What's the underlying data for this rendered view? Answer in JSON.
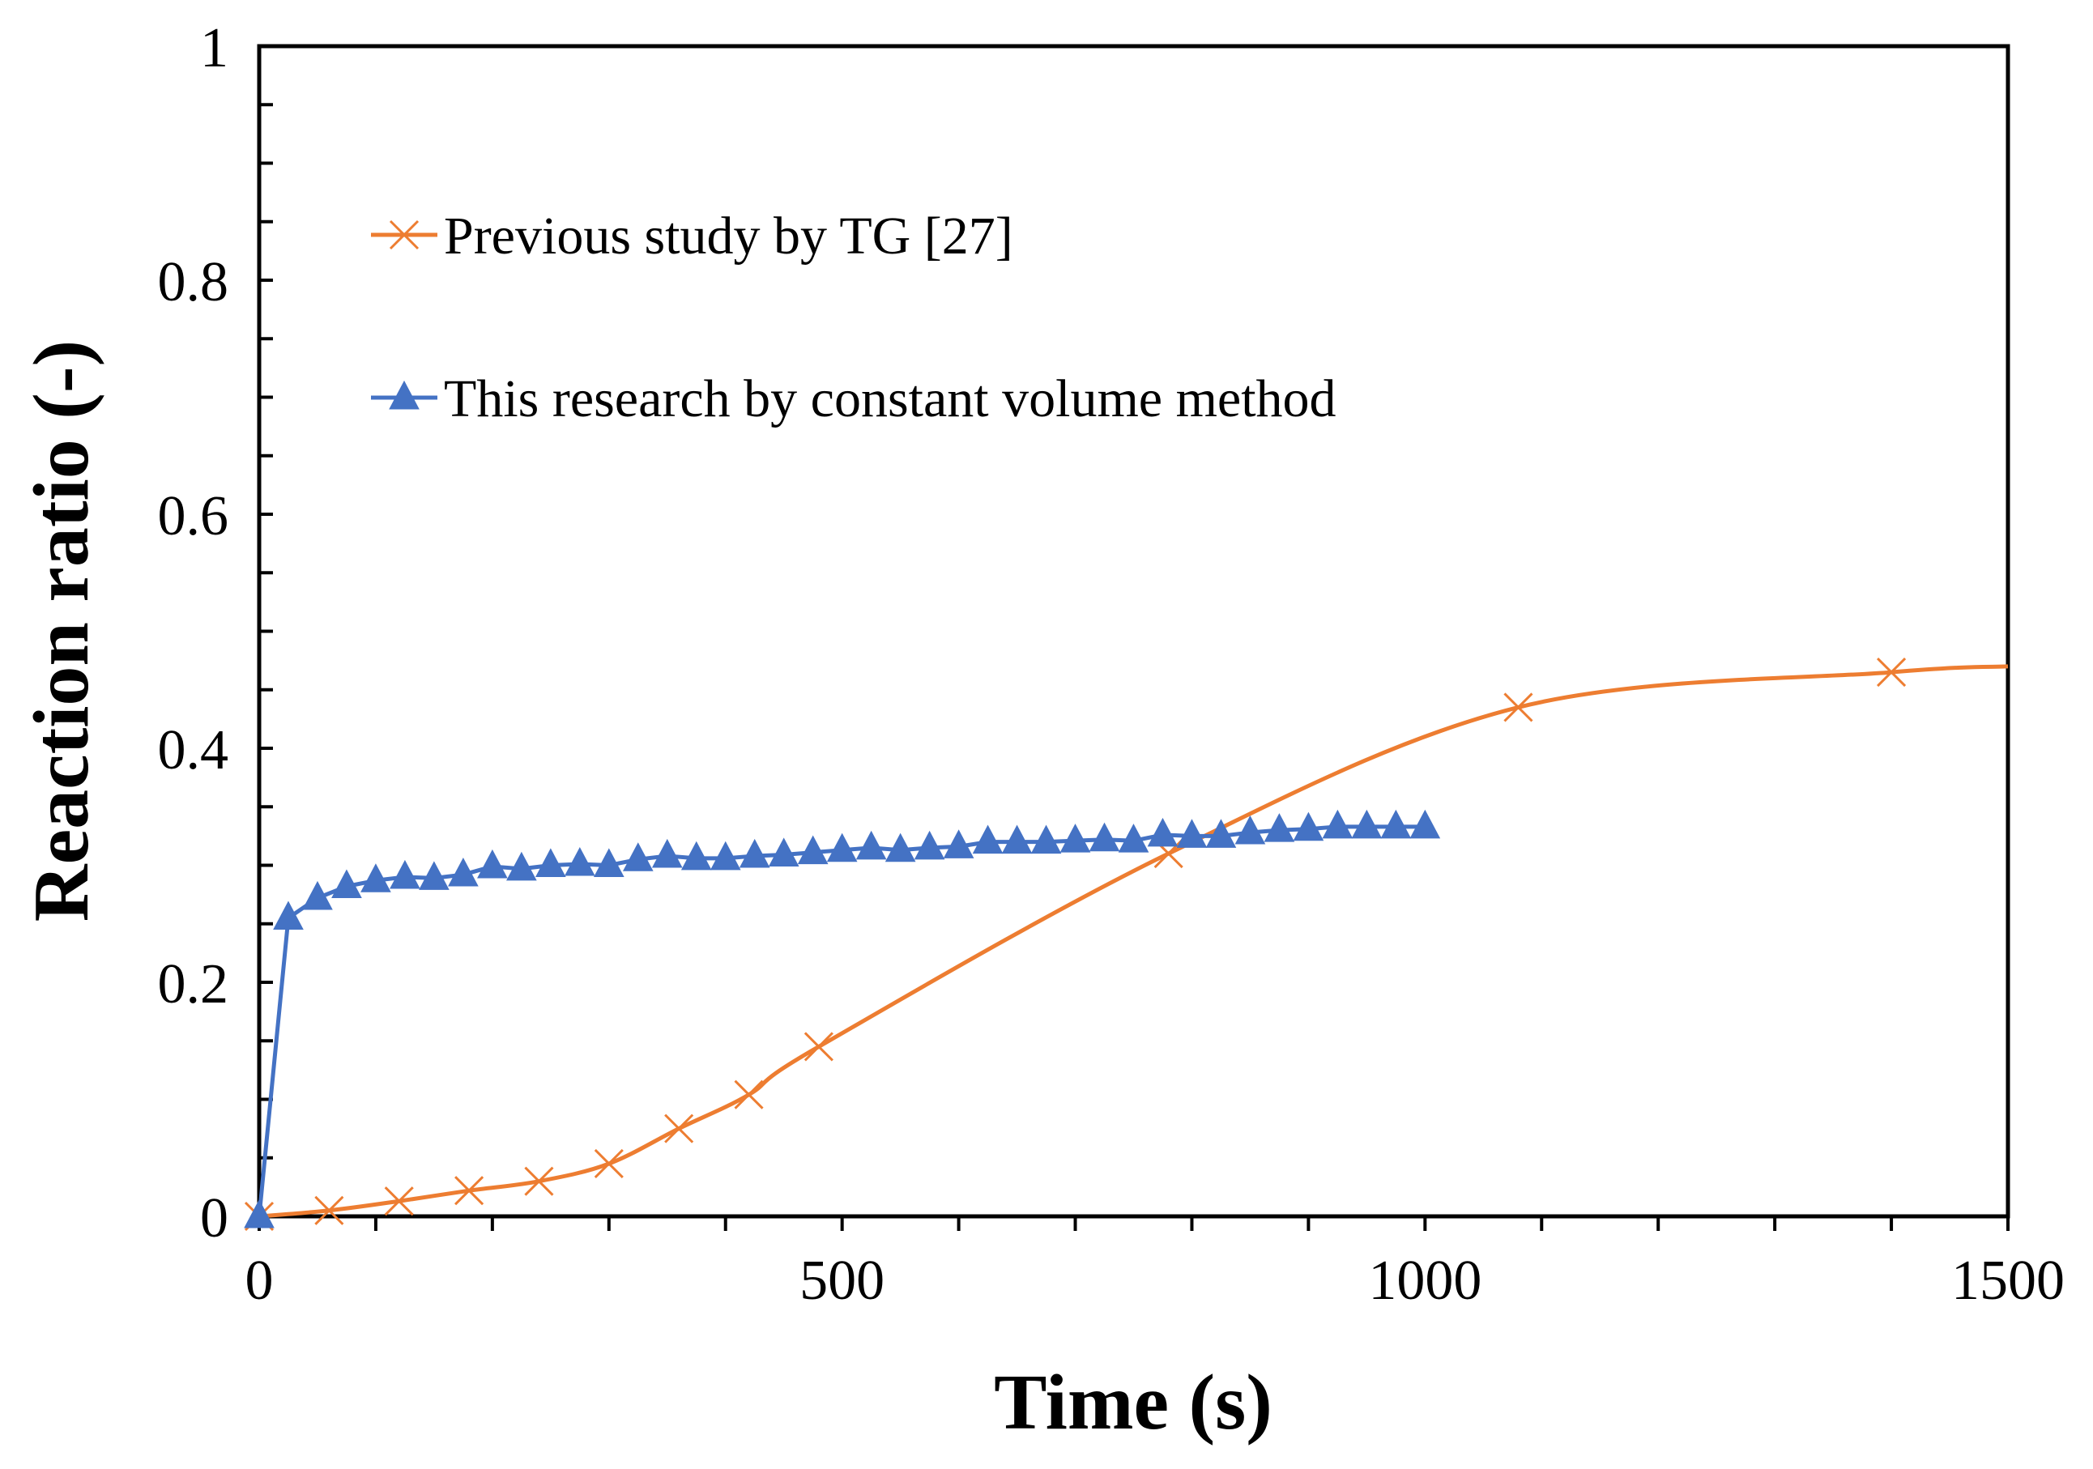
{
  "chart_data": {
    "type": "line",
    "title": "",
    "xlabel": "Time (s)",
    "ylabel": "Reaction ratio (-)",
    "xlim": [
      0,
      1500
    ],
    "ylim": [
      0,
      1
    ],
    "grid": false,
    "legend_position": "top-left",
    "x_ticks": [
      0,
      500,
      1000,
      1500
    ],
    "x_tick_labels": [
      "0",
      "500",
      "1000",
      "1500"
    ],
    "x_minor_step": 100,
    "y_ticks": [
      0,
      0.2,
      0.4,
      0.6,
      0.8,
      1
    ],
    "y_tick_labels": [
      "0",
      "0.2",
      "0.4",
      "0.6",
      "0.8",
      "1"
    ],
    "y_minor_step": 0.05,
    "series": [
      {
        "name": "Previous study by TG [27]",
        "color": "#ED7D31",
        "marker": "x",
        "smooth": true,
        "x": [
          0,
          60,
          120,
          180,
          240,
          300,
          360,
          420,
          480,
          780,
          1080,
          1400,
          1500
        ],
        "y": [
          0.0,
          0.005,
          0.013,
          0.022,
          0.03,
          0.045,
          0.075,
          0.104,
          0.145,
          0.31,
          0.435,
          0.465,
          0.47
        ],
        "marker_mask": [
          true,
          true,
          true,
          true,
          true,
          true,
          true,
          true,
          true,
          true,
          true,
          true,
          false
        ]
      },
      {
        "name": "This research by constant volume method",
        "color": "#4472C4",
        "marker": "triangle",
        "smooth": false,
        "x": [
          0,
          25,
          50,
          75,
          100,
          125,
          150,
          175,
          200,
          225,
          250,
          275,
          300,
          325,
          350,
          375,
          400,
          425,
          450,
          475,
          500,
          525,
          550,
          575,
          600,
          625,
          650,
          675,
          700,
          725,
          750,
          775,
          800,
          825,
          850,
          875,
          900,
          925,
          950,
          975,
          1000
        ],
        "y": [
          0.0,
          0.255,
          0.272,
          0.282,
          0.287,
          0.29,
          0.289,
          0.292,
          0.299,
          0.297,
          0.3,
          0.301,
          0.3,
          0.305,
          0.308,
          0.306,
          0.306,
          0.308,
          0.309,
          0.311,
          0.313,
          0.315,
          0.313,
          0.315,
          0.316,
          0.32,
          0.32,
          0.32,
          0.321,
          0.322,
          0.321,
          0.326,
          0.325,
          0.325,
          0.328,
          0.33,
          0.331,
          0.333,
          0.333,
          0.333,
          0.333
        ]
      }
    ]
  }
}
